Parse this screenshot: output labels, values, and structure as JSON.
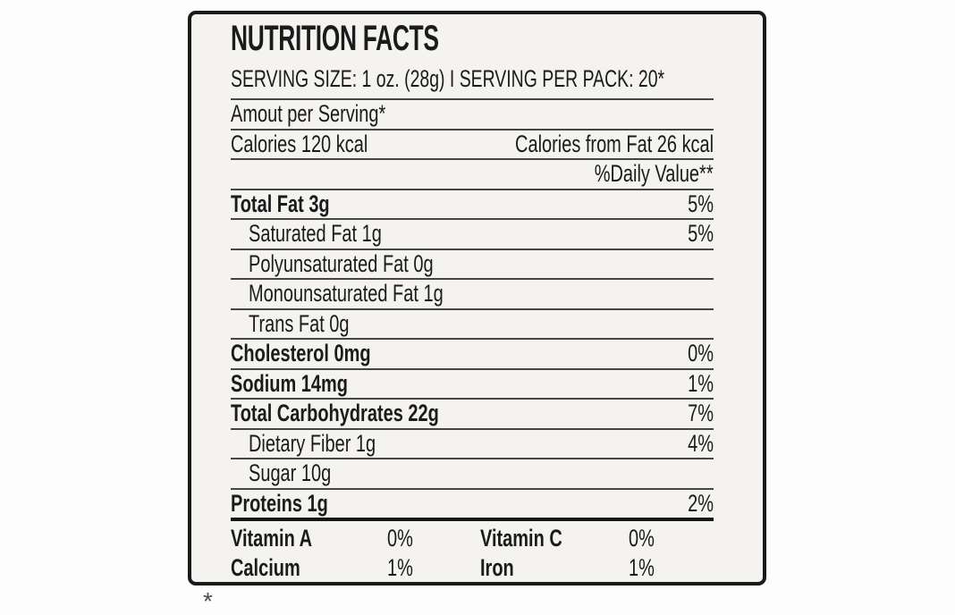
{
  "label": {
    "title": "NUTRITION FACTS",
    "serving_line": "SERVING SIZE: 1 oz. (28g) I SERVING PER PACK: 20*",
    "amount_per_serving": "Amout per Serving*",
    "calories": "Calories 120 kcal",
    "calories_from_fat": "Calories from Fat 26 kcal",
    "daily_value_header": "%Daily Value**",
    "rows": [
      {
        "name": "Total Fat 3g",
        "dv": "5%"
      },
      {
        "name": "Saturated Fat 1g",
        "dv": "5%"
      },
      {
        "name": "Polyunsaturated Fat 0g",
        "dv": ""
      },
      {
        "name": "Monounsaturated Fat 1g",
        "dv": ""
      },
      {
        "name": "Trans Fat 0g",
        "dv": ""
      },
      {
        "name": "Cholesterol 0mg",
        "dv": "0%"
      },
      {
        "name": "Sodium 14mg",
        "dv": "1%"
      },
      {
        "name": "Total Carbohydrates 22g",
        "dv": "7%"
      },
      {
        "name": "Dietary Fiber 1g",
        "dv": "4%"
      },
      {
        "name": "Sugar 10g",
        "dv": ""
      },
      {
        "name": "Proteins 1g",
        "dv": "2%"
      }
    ],
    "micronutrients": [
      {
        "name": "Vitamin A",
        "value": "0%"
      },
      {
        "name": "Vitamin C",
        "value": "0%"
      },
      {
        "name": "Calcium",
        "value": "1%"
      },
      {
        "name": "Iron",
        "value": "1%"
      }
    ],
    "footnote_fragment": "*"
  },
  "colors": {
    "page_background": "#fdfdfd",
    "paper": "#f4f3f0",
    "ink": "#1b1b1b",
    "rule_thin": "#454545",
    "rule_thick": "#161616",
    "border": "#1a1a1a"
  }
}
